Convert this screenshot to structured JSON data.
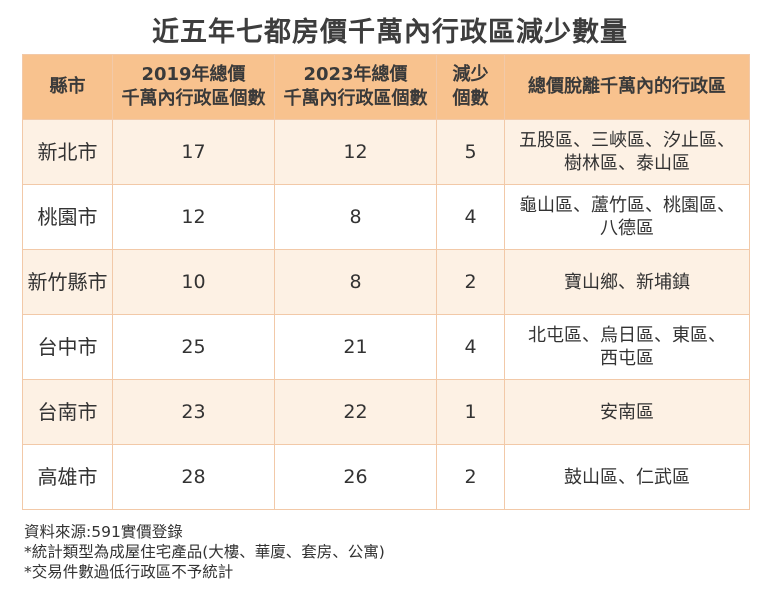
{
  "title": "近五年七都房價千萬內行政區減少數量",
  "table": {
    "headers": [
      "縣市",
      "2019年總價千萬內行政區個數",
      "2023年總價千萬內行政區個數",
      "減少個數",
      "總價脫離千萬內的行政區"
    ],
    "rows": [
      {
        "city": "新北市",
        "y2019": "17",
        "y2023": "12",
        "decrease": "5",
        "areas_line1": "五股區、三峽區、汐止區、",
        "areas_line2": "樹林區、泰山區"
      },
      {
        "city": "桃園市",
        "y2019": "12",
        "y2023": "8",
        "decrease": "4",
        "areas_line1": "龜山區、蘆竹區、桃園區、",
        "areas_line2": "八德區"
      },
      {
        "city": "新竹縣市",
        "y2019": "10",
        "y2023": "8",
        "decrease": "2",
        "areas_line1": "寶山鄉、新埔鎮",
        "areas_line2": ""
      },
      {
        "city": "台中市",
        "y2019": "25",
        "y2023": "21",
        "decrease": "4",
        "areas_line1": "北屯區、烏日區、東區、",
        "areas_line2": "西屯區"
      },
      {
        "city": "台南市",
        "y2019": "23",
        "y2023": "22",
        "decrease": "1",
        "areas_line1": "安南區",
        "areas_line2": ""
      },
      {
        "city": "高雄市",
        "y2019": "28",
        "y2023": "26",
        "decrease": "2",
        "areas_line1": "鼓山區、仁武區",
        "areas_line2": ""
      }
    ]
  },
  "notes": [
    "資料來源:591實價登錄",
    "*統計類型為成屋住宅產品(大樓、華廈、套房、公寓)",
    "*交易件數過低行政區不予統計"
  ],
  "colors": {
    "header_bg": "#f8c28e",
    "row_alt_bg": "#fdf1e4",
    "border": "#f2c9a8"
  }
}
